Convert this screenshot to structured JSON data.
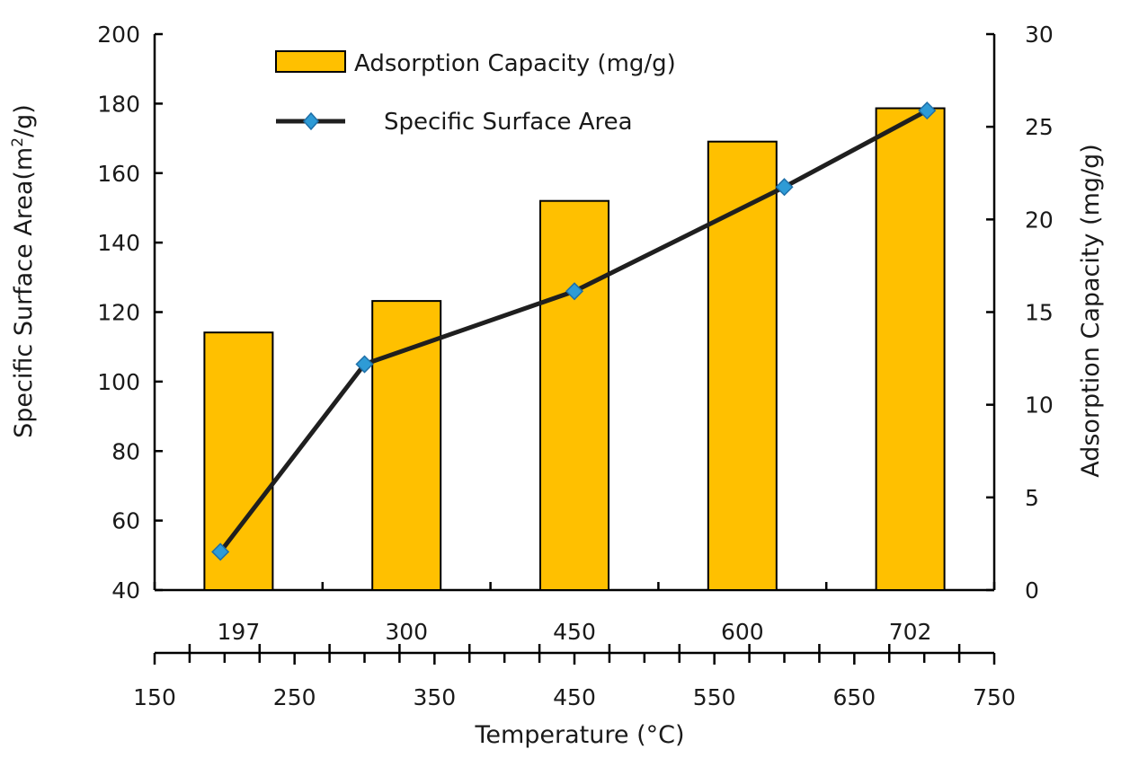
{
  "chart_data": {
    "type": "bar",
    "categories": [
      "197",
      "300",
      "450",
      "600",
      "702"
    ],
    "series": [
      {
        "name": "Adsorption Capacity (mg/g)",
        "type": "bar",
        "axis": "right",
        "x": [
          197,
          300,
          450,
          600,
          702
        ],
        "values": [
          13.9,
          15.6,
          21.0,
          24.2,
          26.0
        ],
        "color": "#FFC000"
      },
      {
        "name": "Specific Surface Area",
        "type": "line",
        "axis": "left",
        "x": [
          197,
          300,
          450,
          600,
          702
        ],
        "values": [
          51,
          105,
          126,
          156,
          178
        ],
        "color": "#1f1f1f",
        "marker_color": "#2E9BD6"
      }
    ],
    "left_axis": {
      "label": "Specific Surface Area(m²/g)",
      "ylim": [
        40,
        200
      ],
      "ticks": [
        "40",
        "60",
        "80",
        "100",
        "120",
        "140",
        "160",
        "180",
        "200"
      ]
    },
    "right_axis": {
      "label": "Adsorption Capacity (mg/g)",
      "ylim": [
        0,
        30
      ],
      "ticks": [
        "0",
        "5",
        "10",
        "15",
        "20",
        "25",
        "30"
      ]
    },
    "x_axis": {
      "label": "Temperature (°C)",
      "xlim": [
        150,
        750
      ],
      "ticks": [
        "150",
        "250",
        "350",
        "450",
        "550",
        "650",
        "750"
      ]
    },
    "legend_position": "top-left",
    "grid": false
  }
}
